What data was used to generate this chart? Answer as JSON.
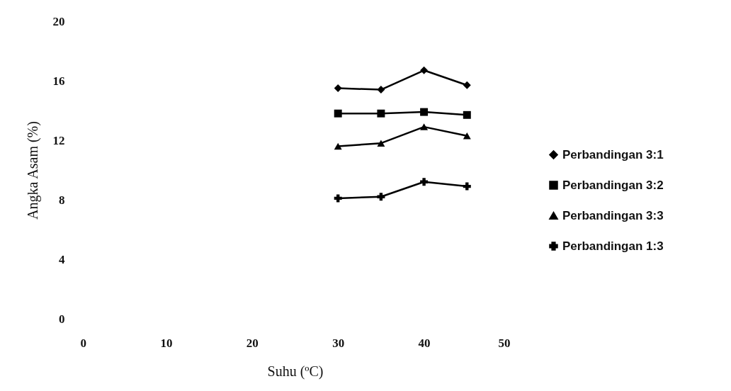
{
  "chart_data": {
    "type": "line",
    "xlabel": "Suhu (ºC)",
    "ylabel": "Angka Asam (%)",
    "x": [
      30,
      35,
      40,
      45
    ],
    "xlim": [
      0,
      50
    ],
    "xticks": [
      0,
      10,
      20,
      30,
      40,
      50
    ],
    "ylim": [
      0,
      20
    ],
    "yticks": [
      0,
      4,
      8,
      12,
      16,
      20
    ],
    "grid": false,
    "legend": "right",
    "series": [
      {
        "name": "Perbandingan 3:1",
        "color": "#000000",
        "marker": "diamond",
        "values": [
          15.5,
          15.4,
          16.7,
          15.7
        ]
      },
      {
        "name": "Perbandingan 3:2",
        "color": "#000000",
        "marker": "square",
        "values": [
          13.8,
          13.8,
          13.9,
          13.7
        ]
      },
      {
        "name": "Perbandingan 3:3",
        "color": "#000000",
        "marker": "triangle",
        "values": [
          11.6,
          11.8,
          12.9,
          12.3
        ]
      },
      {
        "name": "Perbandingan 1:3",
        "color": "#000000",
        "marker": "cross",
        "values": [
          8.1,
          8.2,
          9.2,
          8.9
        ]
      }
    ]
  }
}
